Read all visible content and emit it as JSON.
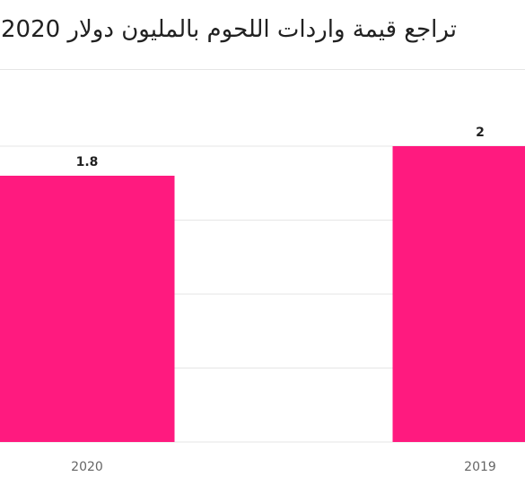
{
  "chart_data": {
    "type": "bar",
    "title": "تراجع قيمة واردات اللحوم بالمليون دولار 2020",
    "categories": [
      "2020",
      "2019"
    ],
    "values": [
      1.8,
      2
    ],
    "data_labels": [
      "1.8",
      "2"
    ],
    "ylim": [
      0,
      2
    ],
    "grid": true,
    "legend": "none",
    "xlabel": "",
    "ylabel": ""
  },
  "colors": {
    "bar": "#ff1a7f",
    "grid": "#e6e6e6",
    "axis_text": "#666666",
    "title": "#212121"
  }
}
